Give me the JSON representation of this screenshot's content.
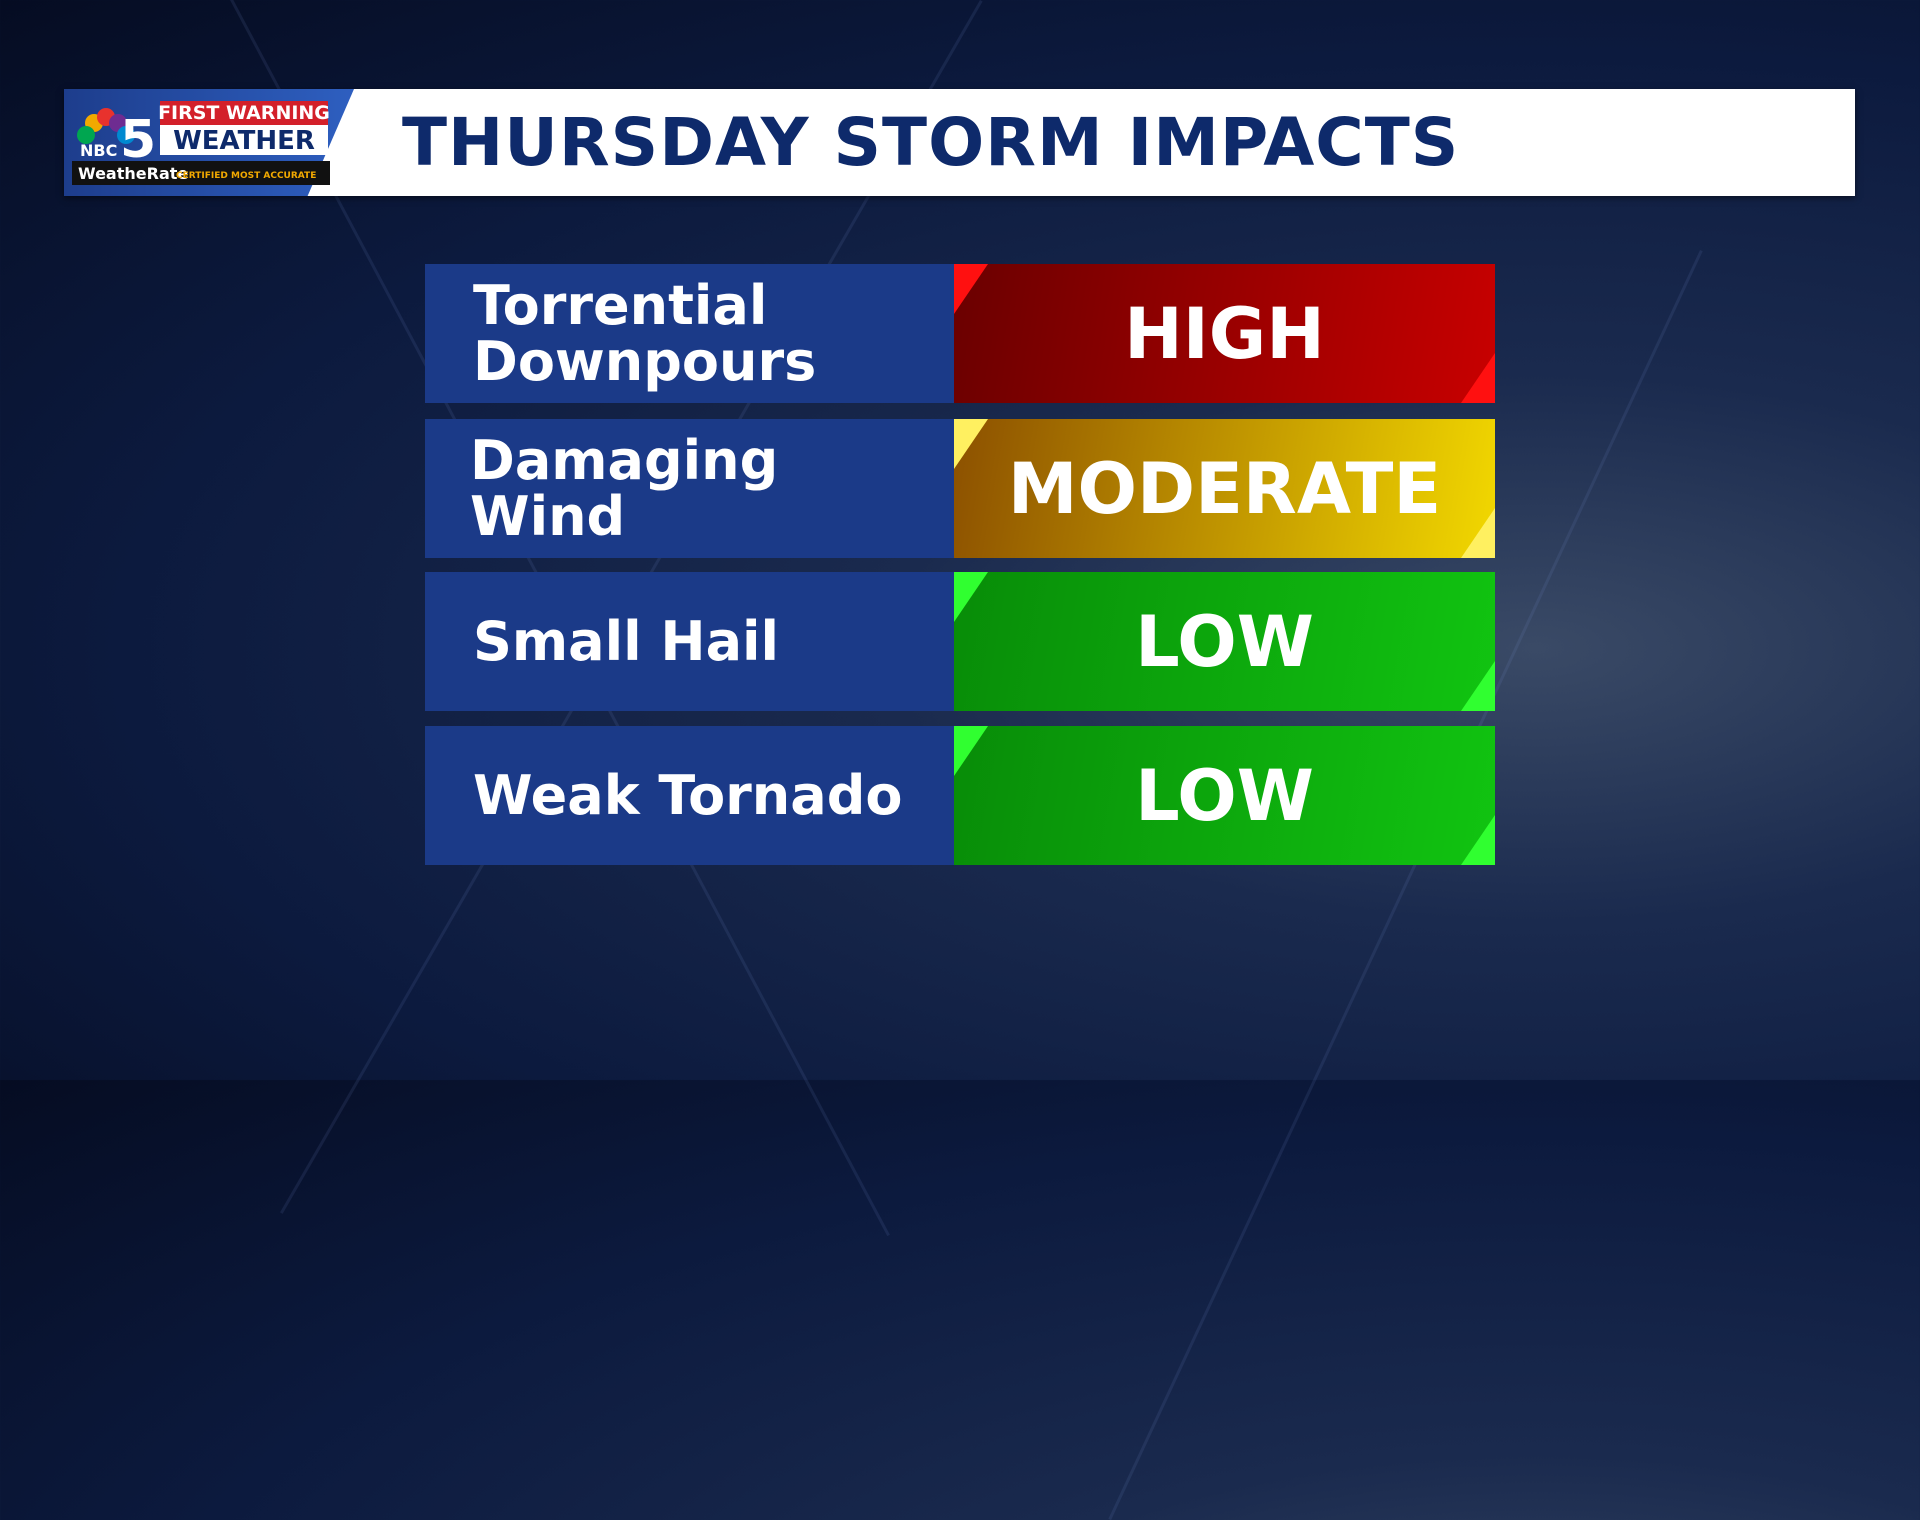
{
  "logo": {
    "network": "NBC",
    "channel": "5",
    "line1": "FIRST WARNING",
    "line2": "WEATHER",
    "badge": "WeatheRate",
    "badge_note": "CERTIFIED MOST ACCURATE"
  },
  "header": {
    "title": "THURSDAY STORM IMPACTS"
  },
  "table": {
    "rows": [
      [
        "Torrential Downpours",
        "HIGH"
      ],
      [
        "Damaging Wind",
        "MODERATE"
      ],
      [
        "Small Hail",
        "LOW"
      ],
      [
        "Weak Tornado",
        "LOW"
      ]
    ]
  }
}
